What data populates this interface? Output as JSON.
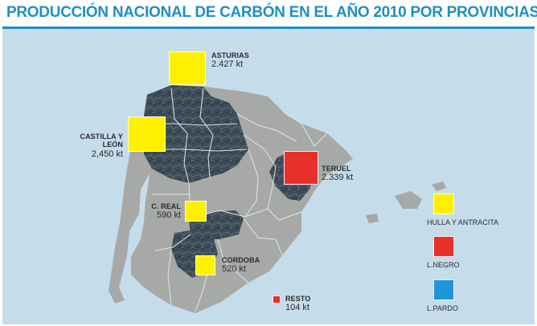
{
  "title": "PRODUCCIÓN NACIONAL DE CARBÓN EN EL AÑO 2010 POR PROVINCIAS",
  "colors": {
    "title": "#1f8fc2",
    "sea": "#c5dceb",
    "land": "#a7a9a6",
    "coal_region": "#3e4c58",
    "hulla_y_antracita": "#fff000",
    "lignito_negro": "#e8302a",
    "lignito_pardo": "#1e96d8"
  },
  "regions": [
    {
      "name": "ASTURIAS",
      "value": "2.427 kt",
      "category": "hulla_y_antracita"
    },
    {
      "name": "CASTILLA Y LEÓN",
      "value": "2,450 kt",
      "category": "hulla_y_antracita"
    },
    {
      "name": "TERUEL",
      "value": "2.339 kt",
      "category": "lignito_negro"
    },
    {
      "name": "C. REAL",
      "value": "590 kt",
      "category": "hulla_y_antracita"
    },
    {
      "name": "CORDOBA",
      "value": "520 kt",
      "category": "hulla_y_antracita"
    },
    {
      "name": "RESTO",
      "value": "104 kt",
      "category": "lignito_negro"
    }
  ],
  "legend": [
    {
      "label": "HULLA  Y ANTRACITA",
      "category": "hulla_y_antracita"
    },
    {
      "label": "L.NEGRO",
      "category": "lignito_negro"
    },
    {
      "label": "L.PARDO",
      "category": "lignito_pardo"
    }
  ]
}
